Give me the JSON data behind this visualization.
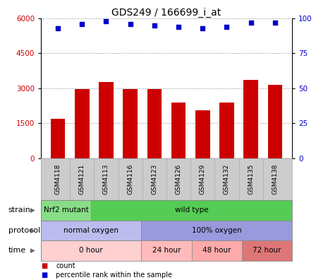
{
  "title": "GDS249 / 166699_i_at",
  "samples": [
    "GSM4118",
    "GSM4121",
    "GSM4113",
    "GSM4116",
    "GSM4123",
    "GSM4126",
    "GSM4129",
    "GSM4132",
    "GSM4135",
    "GSM4138"
  ],
  "counts": [
    1700,
    2950,
    3250,
    2950,
    2950,
    2400,
    2050,
    2400,
    3350,
    3150
  ],
  "percentiles": [
    93,
    96,
    98,
    96,
    95,
    94,
    93,
    94,
    97,
    97
  ],
  "ylim_left": [
    0,
    6000
  ],
  "ylim_right": [
    0,
    100
  ],
  "yticks_left": [
    0,
    1500,
    3000,
    4500,
    6000
  ],
  "yticks_right": [
    0,
    25,
    50,
    75,
    100
  ],
  "bar_color": "#cc0000",
  "dot_color": "#0000cc",
  "strain_labels": [
    {
      "label": "Nrf2 mutant",
      "start": 0,
      "end": 2,
      "color": "#88dd88"
    },
    {
      "label": "wild type",
      "start": 2,
      "end": 10,
      "color": "#55cc55"
    }
  ],
  "protocol_labels": [
    {
      "label": "normal oxygen",
      "start": 0,
      "end": 4,
      "color": "#bbbbee"
    },
    {
      "label": "100% oxygen",
      "start": 4,
      "end": 10,
      "color": "#9999dd"
    }
  ],
  "time_labels": [
    {
      "label": "0 hour",
      "start": 0,
      "end": 4,
      "color": "#ffd0d0"
    },
    {
      "label": "24 hour",
      "start": 4,
      "end": 6,
      "color": "#ffbbbb"
    },
    {
      "label": "48 hour",
      "start": 6,
      "end": 8,
      "color": "#ffaaaa"
    },
    {
      "label": "72 hour",
      "start": 8,
      "end": 10,
      "color": "#dd7777"
    }
  ],
  "row_labels": [
    "strain",
    "protocol",
    "time"
  ],
  "legend_items": [
    {
      "label": "count",
      "color": "#cc0000"
    },
    {
      "label": "percentile rank within the sample",
      "color": "#0000cc"
    }
  ],
  "background_color": "#ffffff",
  "tick_label_color_left": "#cc0000",
  "tick_label_color_right": "#0000cc",
  "xlabels_bg": "#cccccc",
  "gridline_color": "#888888"
}
